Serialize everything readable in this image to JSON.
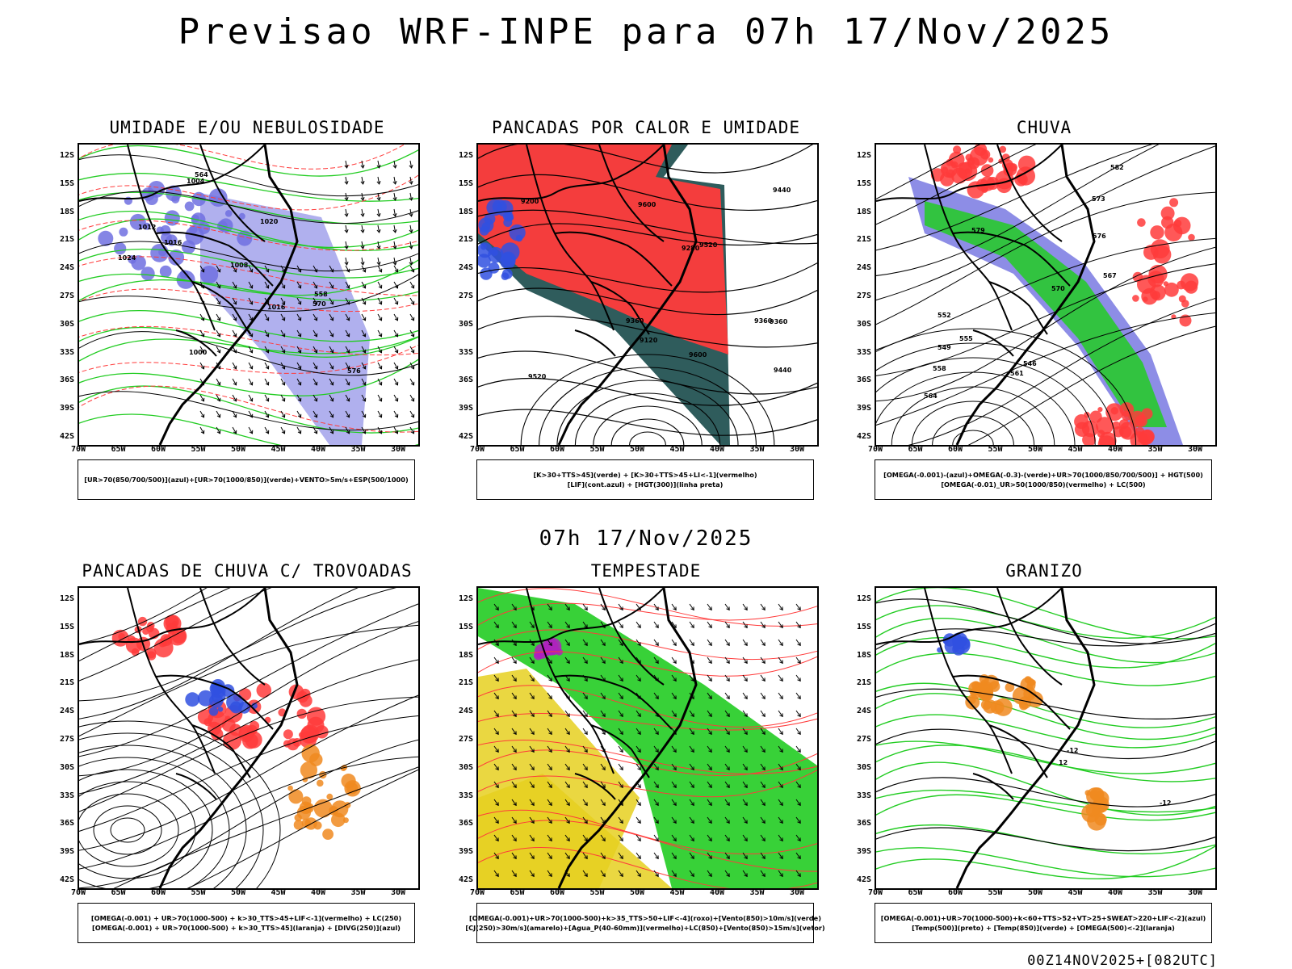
{
  "main_title": "Previsao WRF-INPE  para 07h 17/Nov/2025",
  "mid_title": "07h 17/Nov/2025",
  "footer": "00Z14NOV2025+[082UTC]",
  "axes": {
    "lat_labels": [
      "12S",
      "15S",
      "18S",
      "21S",
      "24S",
      "27S",
      "30S",
      "33S",
      "36S",
      "39S",
      "42S"
    ],
    "lon_labels": [
      "70W",
      "65W",
      "60W",
      "55W",
      "50W",
      "45W",
      "40W",
      "35W",
      "30W"
    ]
  },
  "panels": [
    {
      "id": "umidade",
      "title": "UMIDADE E/OU NEBULOSIDADE",
      "legend": [
        "[UR>70(850/700/500)](azul)+[UR>70(1000/850)](verde)+VENTO>5m/s+ESP(500/1000)"
      ],
      "contour_labels": [
        "1016",
        "1012",
        "1008",
        "1004",
        "1000",
        "1020",
        "1024",
        "1016",
        "576",
        "570",
        "564",
        "558"
      ]
    },
    {
      "id": "pancadas",
      "title": "PANCADAS POR CALOR E UMIDADE",
      "legend": [
        "[K>30+TTS>45](verde) + [K>30+TTS>45+LI<-1](vermelho)",
        "[LIF](cont.azul) + [HGT(300)](linha preta)"
      ],
      "contour_labels": [
        "9600",
        "9600",
        "9520",
        "9440",
        "9360",
        "9280",
        "9200",
        "9120",
        "9440",
        "9360",
        "9520",
        "9360"
      ]
    },
    {
      "id": "chuva",
      "title": "CHUVA",
      "legend": [
        "[OMEGA(-0.001)-(azul)+OMEGA(-0.3)-(verde)+UR>70(1000/850/700/500)] + HGT(500)",
        "[OMEGA(-0.01)_UR>50(1000/850)(vermelho) + LC(500)"
      ],
      "contour_labels": [
        "582",
        "579",
        "576",
        "573",
        "570",
        "567",
        "564",
        "561",
        "558",
        "555",
        "552",
        "549",
        "546"
      ]
    },
    {
      "id": "trovoadas",
      "title": "PANCADAS DE CHUVA C/ TROVOADAS",
      "legend": [
        "[OMEGA(-0.001) + UR>70(1000-500) + k>30_TTS>45+LIF<-1](vermelho) + LC(250)",
        "[OMEGA(-0.001) + UR>70(1000-500) + k>30_TTS>45](laranja) + [DIVG(250)](azul)"
      ],
      "contour_labels": []
    },
    {
      "id": "tempestade",
      "title": "TEMPESTADE",
      "legend": [
        "[OMEGA(-0.001)+UR>70(1000-500)+k>35_TTS>50+LIF<-4](roxo)+[Vento(850)>10m/s](verde)",
        "[CJ(250)>30m/s](amarelo)+[Agua_P(40-60mm)](vermelho)+LC(850)+[Vento(850)>15m/s](vetor)"
      ],
      "contour_labels": []
    },
    {
      "id": "granizo",
      "title": "GRANIZO",
      "legend": [
        "[OMEGA(-0.001)+UR>70(1000-500)+k<60+TTS>52+VT>25+SWEAT>220+LIF<-2](azul)",
        "[Temp(500)](preto) + [Temp(850)](verde) + [OMEGA(500)<-2](laranja)"
      ],
      "contour_labels": [
        "-12",
        "-12",
        "12"
      ]
    }
  ],
  "colors": {
    "blue": "#7070e0",
    "green": "#22cc22",
    "red": "#ff3b3b",
    "dark_teal": "#2f5c5c",
    "yellow": "#e6d020",
    "orange": "#f08a20",
    "purple": "#b020c0"
  }
}
